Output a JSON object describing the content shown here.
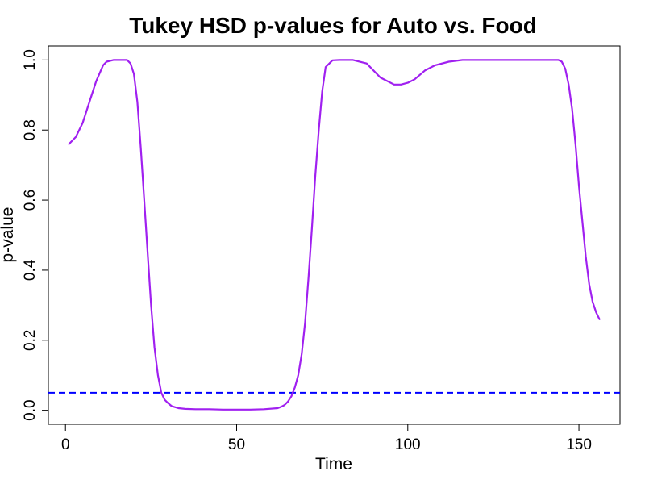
{
  "chart_data": {
    "type": "line",
    "title": "Tukey HSD p-values for Auto vs. Food",
    "xlabel": "Time",
    "ylabel": "p-value",
    "xlim": [
      -5,
      162
    ],
    "ylim": [
      -0.04,
      1.04
    ],
    "x_ticks": [
      0,
      50,
      100,
      150
    ],
    "y_ticks": [
      0.0,
      0.2,
      0.4,
      0.6,
      0.8,
      1.0
    ],
    "grid": false,
    "legend": "none",
    "series": [
      {
        "color": "#a020f0",
        "x": [
          1,
          3,
          5,
          7,
          9,
          11,
          12,
          14,
          16,
          18,
          19,
          20,
          21,
          22,
          23,
          24,
          25,
          26,
          27,
          28,
          29,
          30,
          31,
          33,
          35,
          38,
          42,
          46,
          50,
          54,
          58,
          62,
          63,
          64,
          65,
          66,
          67,
          68,
          69,
          70,
          71,
          72,
          73,
          74,
          75,
          76,
          78,
          80,
          84,
          88,
          92,
          96,
          98,
          100,
          102,
          105,
          108,
          112,
          116,
          120,
          125,
          130,
          135,
          140,
          144,
          145,
          146,
          147,
          148,
          149,
          150,
          151,
          152,
          153,
          154,
          155,
          156
        ],
        "y": [
          0.76,
          0.78,
          0.82,
          0.88,
          0.94,
          0.985,
          0.995,
          1.0,
          1.0,
          1.0,
          0.99,
          0.96,
          0.88,
          0.75,
          0.6,
          0.45,
          0.3,
          0.18,
          0.1,
          0.05,
          0.03,
          0.02,
          0.012,
          0.006,
          0.004,
          0.003,
          0.003,
          0.002,
          0.002,
          0.002,
          0.003,
          0.006,
          0.01,
          0.015,
          0.025,
          0.04,
          0.065,
          0.1,
          0.16,
          0.25,
          0.38,
          0.52,
          0.67,
          0.8,
          0.91,
          0.98,
          0.999,
          1.0,
          1.0,
          0.99,
          0.95,
          0.93,
          0.93,
          0.935,
          0.945,
          0.97,
          0.985,
          0.995,
          1.0,
          1.0,
          1.0,
          1.0,
          1.0,
          1.0,
          1.0,
          0.995,
          0.975,
          0.93,
          0.86,
          0.76,
          0.64,
          0.54,
          0.44,
          0.36,
          0.31,
          0.28,
          0.26
        ]
      }
    ],
    "reference_line": {
      "y": 0.05,
      "color": "#0000ff",
      "style": "dashed"
    }
  }
}
